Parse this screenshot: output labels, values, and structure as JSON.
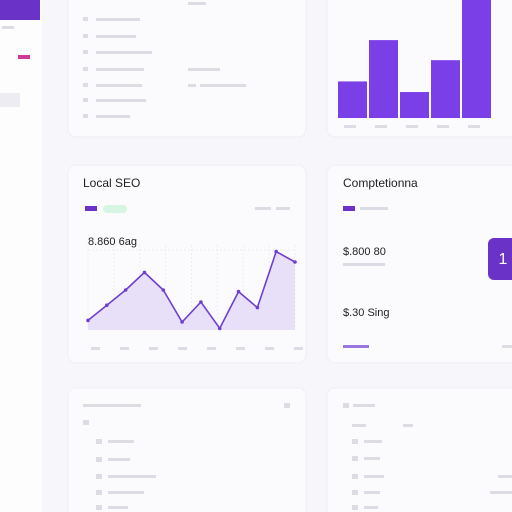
{
  "local_seo": {
    "title": "Local SEO",
    "value": "8.860 6ag"
  },
  "competition": {
    "title": "Comptetionna",
    "value_1": "$.800 80",
    "value_2": "$.30 Sing",
    "badge": "1"
  },
  "chart_data": [
    {
      "type": "bar",
      "values": [
        31,
        66,
        22,
        49,
        100
      ],
      "color": "#7a3fe6",
      "ylim": [
        0,
        100
      ]
    },
    {
      "type": "line",
      "values": [
        12,
        31,
        50,
        72,
        50,
        10,
        35,
        2,
        48,
        28,
        98,
        85
      ],
      "color": "#6f3fd0",
      "ylim": [
        0,
        100
      ]
    }
  ]
}
